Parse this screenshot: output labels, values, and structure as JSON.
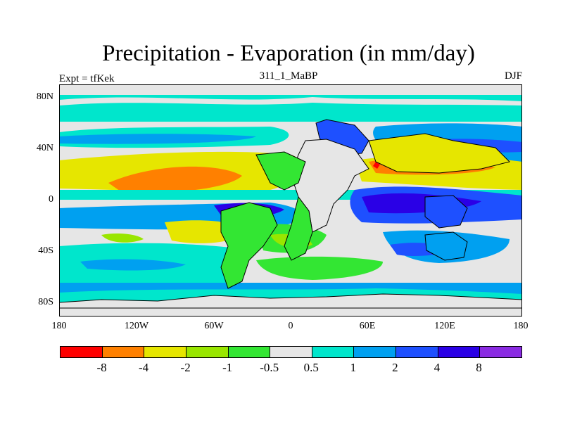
{
  "title": "Precipitation - Evaporation (in mm/day)",
  "subtitle": "311_1_MaBP",
  "left_label": "Expt = tfKek",
  "right_label": "DJF",
  "y_ticks": [
    "80N",
    "40N",
    "0",
    "40S",
    "80S"
  ],
  "x_ticks": [
    "180",
    "120W",
    "60W",
    "0",
    "60E",
    "120E",
    "180"
  ],
  "colorbar": {
    "colors": [
      "#ff0000",
      "#ff8000",
      "#e6e600",
      "#99e600",
      "#33e633",
      "#e6e6e6",
      "#00e6cc",
      "#00a0f0",
      "#1e50ff",
      "#2a00e6",
      "#8a2be2"
    ],
    "labels": [
      "-8",
      "-4",
      "-2",
      "-1",
      "-0.5",
      "0.5",
      "1",
      "2",
      "4",
      "8"
    ]
  },
  "palette": {
    "ocean_gray": "#e6e6e6",
    "coastline": "#000000"
  }
}
